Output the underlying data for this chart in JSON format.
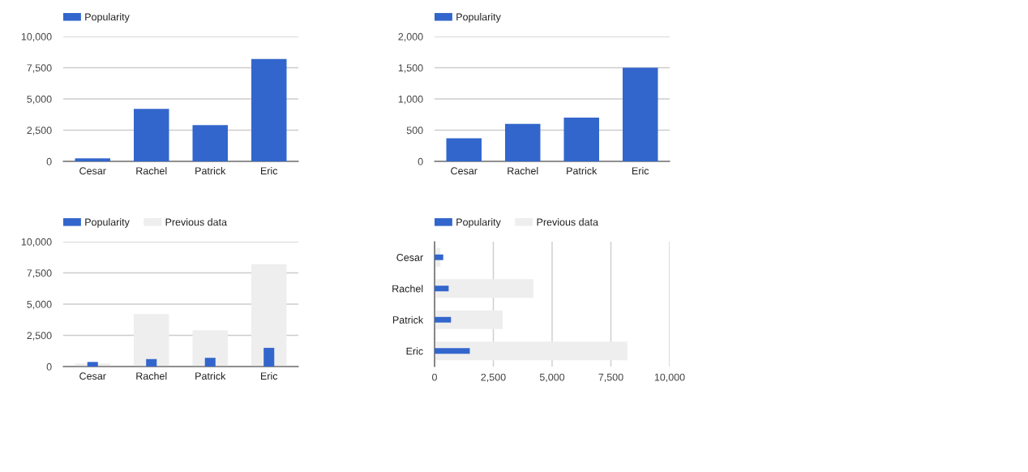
{
  "chart_data": [
    {
      "type": "bar",
      "categories": [
        "Cesar",
        "Rachel",
        "Patrick",
        "Eric"
      ],
      "series": [
        {
          "name": "Popularity",
          "color": "#3366cc",
          "values": [
            250,
            4200,
            2900,
            8200
          ]
        }
      ],
      "ylim": [
        0,
        10000
      ],
      "yticks": [
        0,
        {
          "value": 2500,
          "label": "2,500"
        },
        {
          "value": 5000,
          "label": "5,000"
        },
        {
          "value": 7500,
          "label": "7,500"
        },
        {
          "value": 10000,
          "label": "10,000"
        }
      ],
      "grid": "y",
      "legend": "top left"
    },
    {
      "type": "bar",
      "categories": [
        "Cesar",
        "Rachel",
        "Patrick",
        "Eric"
      ],
      "series": [
        {
          "name": "Popularity",
          "color": "#3366cc",
          "values": [
            370,
            600,
            700,
            1500
          ]
        }
      ],
      "ylim": [
        0,
        2000
      ],
      "yticks": [
        0,
        500,
        {
          "value": 1000,
          "label": "1,000"
        },
        {
          "value": 1500,
          "label": "1,500"
        },
        {
          "value": 2000,
          "label": "2,000"
        }
      ],
      "grid": "y",
      "legend": "top left"
    },
    {
      "type": "bar",
      "categories": [
        "Cesar",
        "Rachel",
        "Patrick",
        "Eric"
      ],
      "series": [
        {
          "name": "Popularity",
          "color": "#3366cc",
          "values": [
            370,
            600,
            700,
            1500
          ]
        },
        {
          "name": "Previous data",
          "color": "#eeeeee",
          "values": [
            250,
            4200,
            2900,
            8200
          ]
        }
      ],
      "ylim": [
        0,
        10000
      ],
      "yticks": [
        0,
        {
          "value": 2500,
          "label": "2,500"
        },
        {
          "value": 5000,
          "label": "5,000"
        },
        {
          "value": 7500,
          "label": "7,500"
        },
        {
          "value": 10000,
          "label": "10,000"
        }
      ],
      "grid": "y",
      "legend": "top left"
    },
    {
      "type": "bar",
      "orientation": "horizontal",
      "categories": [
        "Cesar",
        "Rachel",
        "Patrick",
        "Eric"
      ],
      "series": [
        {
          "name": "Popularity",
          "color": "#3366cc",
          "values": [
            370,
            600,
            700,
            1500
          ]
        },
        {
          "name": "Previous data",
          "color": "#eeeeee",
          "values": [
            250,
            4200,
            2900,
            8200
          ]
        }
      ],
      "xlim": [
        0,
        10000
      ],
      "xticks": [
        0,
        {
          "value": 2500,
          "label": "2,500"
        },
        {
          "value": 5000,
          "label": "5,000"
        },
        {
          "value": 7500,
          "label": "7,500"
        },
        {
          "value": 10000,
          "label": "10,000"
        }
      ],
      "grid": "x",
      "legend": "top left"
    }
  ]
}
